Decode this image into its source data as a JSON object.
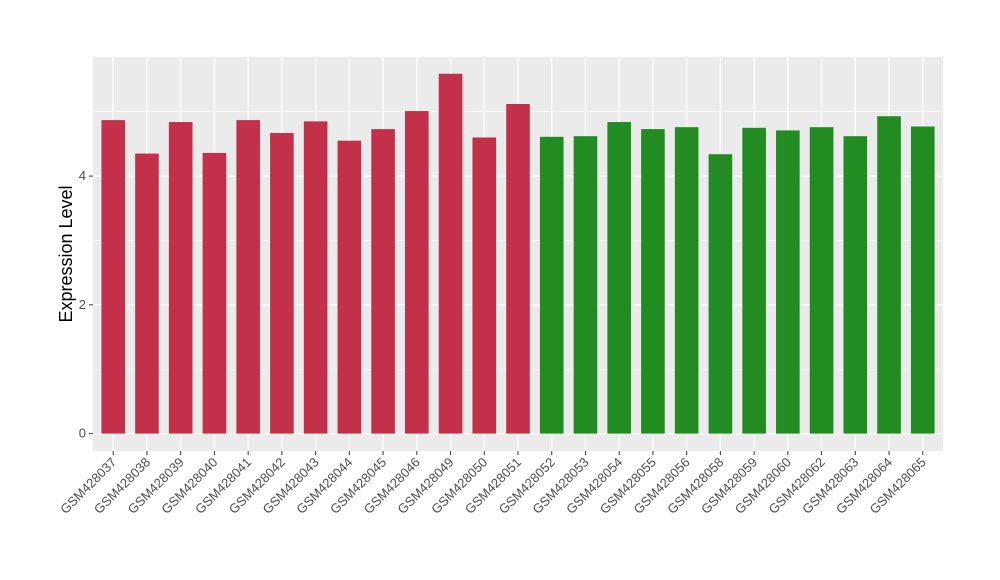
{
  "chart_data": {
    "type": "bar",
    "title": "",
    "xlabel": "",
    "ylabel": "Expression Level",
    "ylim": [
      -0.27,
      5.85
    ],
    "yticks": [
      0,
      2,
      4
    ],
    "grid": true,
    "legend": "none",
    "colors": {
      "group_a": "#C3304A",
      "group_b": "#228B22",
      "panel": "#EBEBEB",
      "grid": "#FFFFFF"
    },
    "categories": [
      "GSM428037",
      "GSM428038",
      "GSM428039",
      "GSM428040",
      "GSM428041",
      "GSM428042",
      "GSM428043",
      "GSM428044",
      "GSM428045",
      "GSM428046",
      "GSM428049",
      "GSM428050",
      "GSM428051",
      "GSM428052",
      "GSM428053",
      "GSM428054",
      "GSM428055",
      "GSM428056",
      "GSM428058",
      "GSM428059",
      "GSM428060",
      "GSM428062",
      "GSM428063",
      "GSM428064",
      "GSM428065"
    ],
    "values": [
      4.87,
      4.35,
      4.84,
      4.36,
      4.87,
      4.67,
      4.85,
      4.55,
      4.73,
      5.01,
      5.59,
      4.6,
      5.12,
      4.61,
      4.62,
      4.84,
      4.73,
      4.76,
      4.34,
      4.75,
      4.71,
      4.76,
      4.62,
      4.93,
      4.77
    ],
    "groups": [
      "a",
      "a",
      "a",
      "a",
      "a",
      "a",
      "a",
      "a",
      "a",
      "a",
      "a",
      "a",
      "a",
      "b",
      "b",
      "b",
      "b",
      "b",
      "b",
      "b",
      "b",
      "b",
      "b",
      "b",
      "b"
    ]
  }
}
